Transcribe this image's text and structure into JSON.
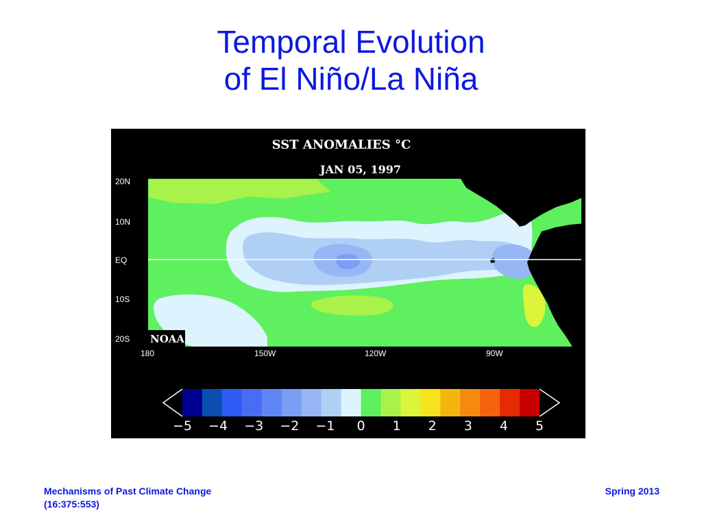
{
  "slide": {
    "title_line1": "Temporal Evolution",
    "title_line2": "of El Niño/La Niña"
  },
  "map": {
    "title": "SST ANOMALIES °C",
    "date": "JAN 05, 1997",
    "credit": "NOAA",
    "lat_labels": [
      "20N",
      "10N",
      "EQ",
      "10S",
      "20S"
    ],
    "lon_labels": [
      "180",
      "150W",
      "120W",
      "90W"
    ],
    "colorbar": {
      "colors": [
        "#00008f",
        "#0a4fb0",
        "#2f5af5",
        "#4a6cf5",
        "#5f86f5",
        "#7b9ef5",
        "#96b6f5",
        "#b0cff5",
        "#ddf4ff",
        "#5ef05e",
        "#a8f24a",
        "#dcf53a",
        "#f5e41e",
        "#f5b50f",
        "#f58a0f",
        "#f5630c",
        "#e52a05",
        "#c80000"
      ],
      "tick_labels": [
        "-5",
        "-4",
        "-3",
        "-2",
        "-1",
        "0",
        "1",
        "2",
        "3",
        "4",
        "5"
      ]
    },
    "colors": {
      "background": "#000000",
      "land": "#000000",
      "neutral": "#ddf4ff",
      "light_cold": "#b0cff5",
      "medium_cold": "#96b6f5",
      "cold": "#7b9ef5",
      "light_warm": "#5ef05e",
      "warm": "#a8f24a",
      "warmer": "#dcf53a"
    }
  },
  "footer": {
    "course_line1": "Mechanisms of Past Climate Change",
    "course_line2": "(16:375:553)",
    "term": "Spring 2013"
  }
}
